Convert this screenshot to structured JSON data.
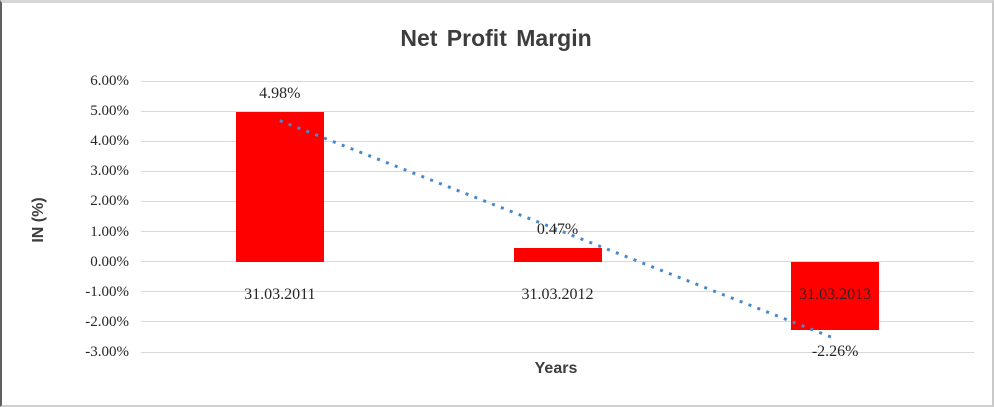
{
  "chart_data": {
    "type": "bar",
    "title": "Net Profit Margin",
    "xlabel": "Years",
    "ylabel": "IN (%)",
    "categories": [
      "31.03.2011",
      "31.03.2012",
      "31.03.2013"
    ],
    "values": [
      4.98,
      0.47,
      -2.26
    ],
    "data_labels": [
      "4.98%",
      "0.47%",
      "-2.26%"
    ],
    "y_ticks": [
      {
        "label": "6.00%",
        "value": 6
      },
      {
        "label": "5.00%",
        "value": 5
      },
      {
        "label": "4.00%",
        "value": 4
      },
      {
        "label": "3.00%",
        "value": 3
      },
      {
        "label": "2.00%",
        "value": 2
      },
      {
        "label": "1.00%",
        "value": 1
      },
      {
        "label": "0.00%",
        "value": 0
      },
      {
        "label": "-1.00%",
        "value": -1
      },
      {
        "label": "-2.00%",
        "value": -2
      },
      {
        "label": "-3.00%",
        "value": -3
      }
    ],
    "ylim": [
      -3,
      6
    ],
    "grid": true,
    "legend": "none",
    "bar_color": "#FF0000",
    "gridline_color": "#D9D9D9",
    "trendline": {
      "type": "linear",
      "style": "dotted",
      "color": "#4A89C8"
    }
  }
}
